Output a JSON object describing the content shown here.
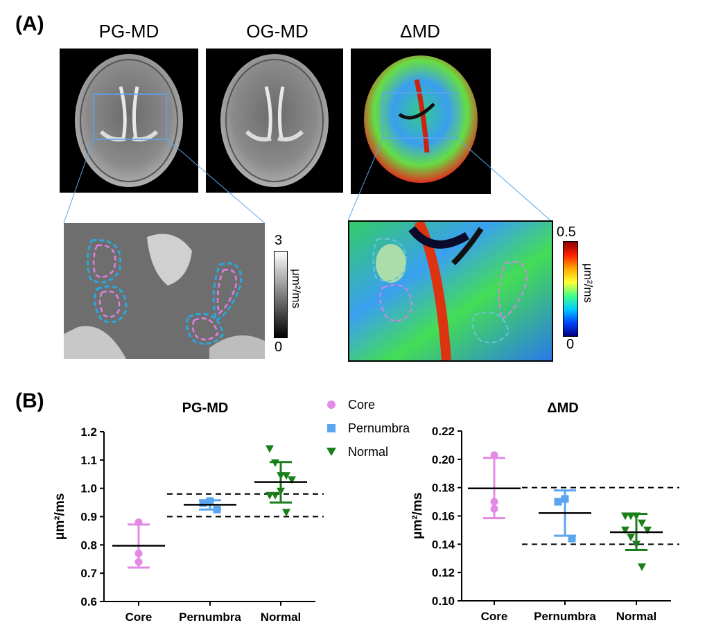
{
  "panel_a": {
    "label": "(A)",
    "titles": [
      "PG-MD",
      "OG-MD",
      "ΔMD"
    ],
    "gray_colorbar": {
      "max_label": "3",
      "min_label": "0",
      "unit": "μm²/ms"
    },
    "color_colorbar": {
      "max_label": "0.5",
      "min_label": "0",
      "unit": "μm²/ms"
    }
  },
  "panel_b": {
    "label": "(B)",
    "legend": [
      {
        "name": "Core",
        "color": "#e38ae6",
        "marker": "circle"
      },
      {
        "name": "Pernumbra",
        "color": "#5aa5f0",
        "marker": "square"
      },
      {
        "name": "Normal",
        "color": "#1a7f1a",
        "marker": "triangle-down"
      }
    ]
  },
  "chart_data": [
    {
      "type": "scatter",
      "title": "PG-MD",
      "ylabel": "μm²/ms",
      "categories": [
        "Core",
        "Pernumbra",
        "Normal"
      ],
      "ylim": [
        0.6,
        1.2
      ],
      "yticks": [
        "0.6",
        "0.7",
        "0.8",
        "0.9",
        "1.0",
        "1.1",
        "1.2"
      ],
      "ytick_values": [
        0.6,
        0.7,
        0.8,
        0.9,
        1.0,
        1.1,
        1.2
      ],
      "reference_lines": [
        0.9,
        0.98
      ],
      "series": [
        {
          "name": "Core",
          "color": "#e38ae6",
          "marker": "circle",
          "points": [
            0.88,
            0.77,
            0.74
          ],
          "mean": 0.797,
          "err_low": 0.72,
          "err_high": 0.872
        },
        {
          "name": "Pernumbra",
          "color": "#5aa5f0",
          "marker": "square",
          "points": [
            0.948,
            0.955,
            0.925
          ],
          "mean": 0.942,
          "err_low": 0.925,
          "err_high": 0.958
        },
        {
          "name": "Normal",
          "color": "#1a7f1a",
          "marker": "triangle-down",
          "points": [
            1.14,
            1.09,
            1.045,
            1.045,
            1.03,
            0.975,
            0.975,
            0.99,
            0.915
          ],
          "mean": 1.022,
          "err_low": 0.95,
          "err_high": 1.093
        }
      ]
    },
    {
      "type": "scatter",
      "title": "ΔMD",
      "ylabel": "μm²/ms",
      "categories": [
        "Core",
        "Pernumbra",
        "Normal"
      ],
      "ylim": [
        0.1,
        0.22
      ],
      "yticks": [
        "0.10",
        "0.12",
        "0.14",
        "0.16",
        "0.18",
        "0.20",
        "0.22"
      ],
      "ytick_values": [
        0.1,
        0.12,
        0.14,
        0.16,
        0.18,
        0.2,
        0.22
      ],
      "reference_lines": [
        0.14,
        0.18
      ],
      "series": [
        {
          "name": "Core",
          "color": "#e38ae6",
          "marker": "circle",
          "points": [
            0.203,
            0.17,
            0.165
          ],
          "mean": 0.1795,
          "err_low": 0.1585,
          "err_high": 0.201
        },
        {
          "name": "Pernumbra",
          "color": "#5aa5f0",
          "marker": "square",
          "points": [
            0.17,
            0.172,
            0.144
          ],
          "mean": 0.162,
          "err_low": 0.146,
          "err_high": 0.178
        },
        {
          "name": "Normal",
          "color": "#1a7f1a",
          "marker": "triangle-down",
          "points": [
            0.16,
            0.16,
            0.16,
            0.155,
            0.15,
            0.15,
            0.145,
            0.14,
            0.124
          ],
          "mean": 0.1485,
          "err_low": 0.136,
          "err_high": 0.1615
        }
      ]
    }
  ]
}
